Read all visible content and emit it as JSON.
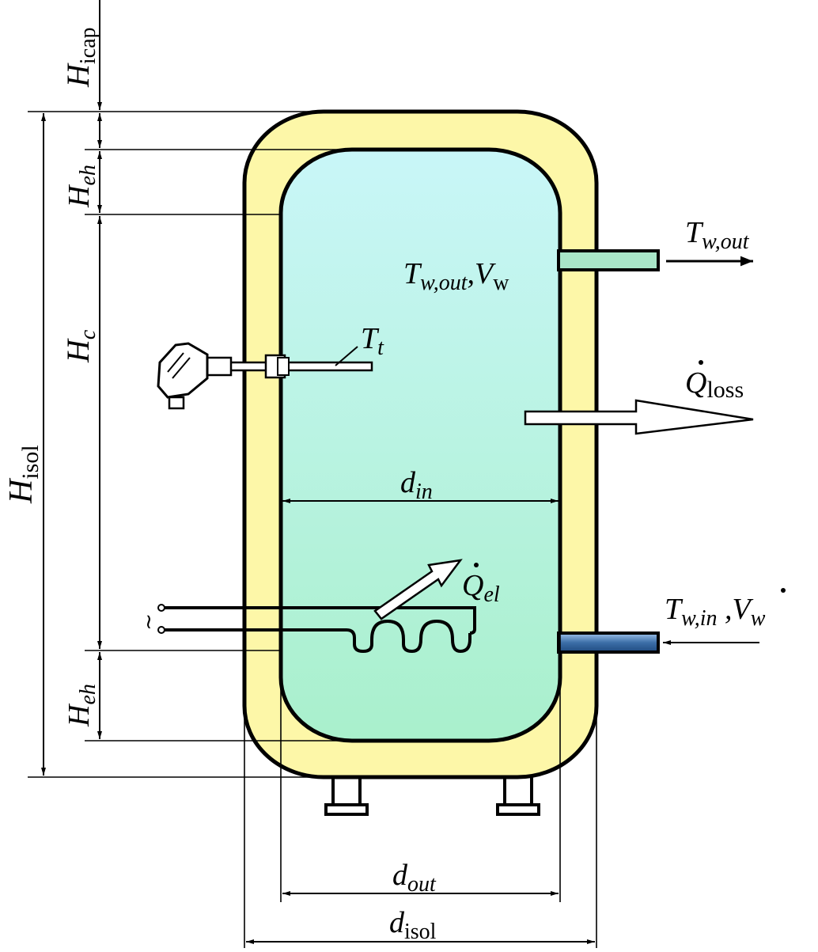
{
  "labels": {
    "H_icap": {
      "main": "H",
      "sub": "icap"
    },
    "H_eh_top": {
      "main": "H",
      "sub": "eh"
    },
    "H_c": {
      "main": "H",
      "sub": "c"
    },
    "H_isol": {
      "main": "H",
      "sub": "isol"
    },
    "H_eh_bottom": {
      "main": "H",
      "sub": "eh"
    },
    "T_w_out_inside": {
      "main": "T",
      "sub": "w,out",
      "suffix": ",V",
      "suffix_sub": "w"
    },
    "T_w_out_outlet": {
      "main": "T",
      "sub": "w,out"
    },
    "T_t": {
      "main": "T",
      "sub": "t"
    },
    "Q_loss": {
      "main": "Q",
      "sub": "loss"
    },
    "d_in": {
      "main": "d",
      "sub": "in"
    },
    "Q_el": {
      "main": "Q",
      "sub": "el"
    },
    "T_w_in": {
      "main": "T",
      "sub": "w,in",
      "suffix": " ,V",
      "suffix_sub": "w"
    },
    "d_out": {
      "main": "d",
      "sub": "out"
    },
    "d_isol": {
      "main": "d",
      "sub": "isol"
    },
    "power_symbol": "~"
  },
  "colors": {
    "insulation": "#fdf7a8",
    "water_top": "#c9f6f8",
    "water_bottom": "#a9f0cc",
    "outlet_pipe": "#a8e6c8",
    "inlet_pipe": "#3c6ea8",
    "outline": "#000000"
  }
}
